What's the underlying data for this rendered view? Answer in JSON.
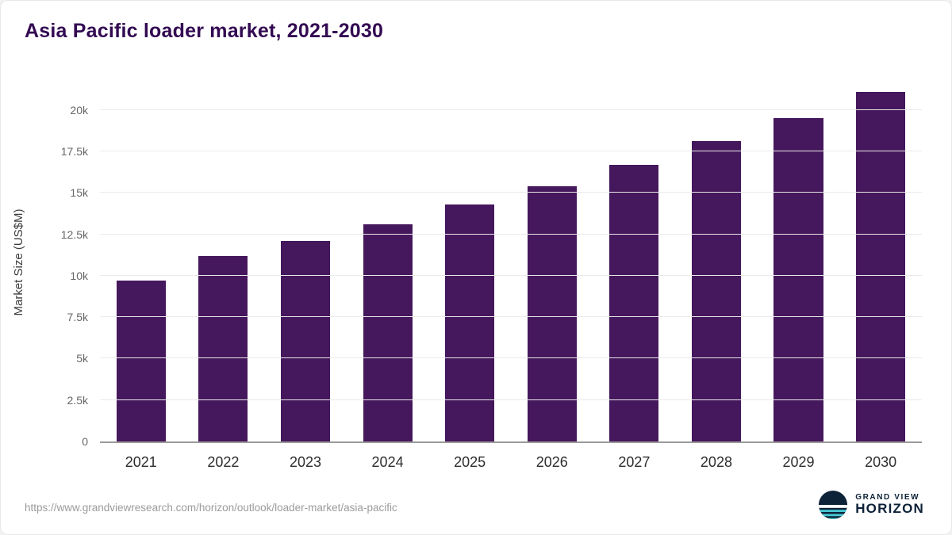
{
  "title": "Asia Pacific loader market, 2021-2030",
  "chart_data": {
    "type": "bar",
    "title": "Asia Pacific loader market, 2021-2030",
    "categories": [
      "2021",
      "2022",
      "2023",
      "2024",
      "2025",
      "2026",
      "2027",
      "2028",
      "2029",
      "2030"
    ],
    "values": [
      9700,
      11200,
      12100,
      13100,
      14300,
      15400,
      16700,
      18100,
      19500,
      21100
    ],
    "xlabel": "",
    "ylabel": "Market Size (US$M)",
    "ylim": [
      0,
      21800
    ],
    "yticks": [
      0,
      2500,
      5000,
      7500,
      10000,
      12500,
      15000,
      17500,
      20000
    ],
    "ytick_labels": [
      "0",
      "2.5k",
      "5k",
      "7.5k",
      "10k",
      "12.5k",
      "15k",
      "17.5k",
      "20k"
    ],
    "grid": true,
    "legend": "none",
    "bar_color": "#45175c"
  },
  "footer": {
    "source_url": "https://www.grandviewresearch.com/horizon/outlook/loader-market/asia-pacific",
    "brand_top": "GRAND VIEW",
    "brand_bottom": "HORIZON"
  },
  "colors": {
    "title": "#330a52",
    "bar": "#45175c",
    "axis": "#9a9a9a",
    "gridline": "#eaeaea",
    "brand_navy": "#0d2137",
    "brand_teal": "#45c8d2"
  }
}
